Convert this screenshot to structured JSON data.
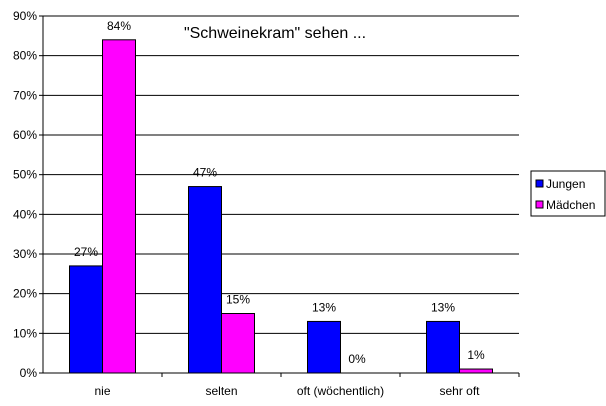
{
  "chart_data": {
    "type": "bar",
    "title": "\"Schweinekram\" sehen ...",
    "categories": [
      "nie",
      "selten",
      "oft (wöchentlich)",
      "sehr oft"
    ],
    "series": [
      {
        "name": "Jungen",
        "values": [
          27,
          47,
          13,
          13
        ],
        "color": "#0000FF"
      },
      {
        "name": "Mädchen",
        "values": [
          84,
          15,
          0,
          1
        ],
        "color": "#FF00FF"
      }
    ],
    "data_labels": [
      [
        "27%",
        "47%",
        "13%",
        "13%"
      ],
      [
        "84%",
        "15%",
        "0%",
        "1%"
      ]
    ],
    "y_ticks": [
      "0%",
      "10%",
      "20%",
      "30%",
      "40%",
      "50%",
      "60%",
      "70%",
      "80%",
      "90%"
    ],
    "ylim": [
      0,
      90
    ],
    "y_unit": "%",
    "grid": true,
    "legend_position": "right"
  }
}
